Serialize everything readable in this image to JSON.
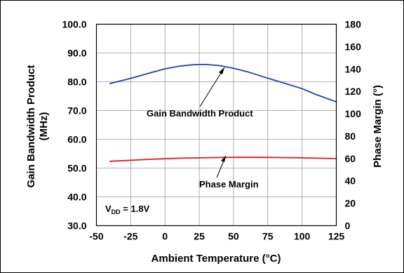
{
  "chart_data": {
    "type": "line",
    "xlabel": "Ambient Temperature (°C)",
    "ylabel_left_line1": "Gain Bandwidth Product",
    "ylabel_left_line2": "(MHz)",
    "ylabel_right": "Phase Margin (°)",
    "xlim": [
      -50,
      125
    ],
    "ylim_left": [
      30,
      100
    ],
    "ylim_right": [
      0,
      180
    ],
    "x_ticks": [
      "-50",
      "-25",
      "0",
      "25",
      "50",
      "75",
      "100",
      "125"
    ],
    "x_tick_values": [
      -50,
      -25,
      0,
      25,
      50,
      75,
      100,
      125
    ],
    "y_left_ticks": [
      "30.0",
      "40.0",
      "50.0",
      "60.0",
      "70.0",
      "80.0",
      "90.0",
      "100.0"
    ],
    "y_left_tick_values": [
      30,
      40,
      50,
      60,
      70,
      80,
      90,
      100
    ],
    "y_right_ticks": [
      "0",
      "20",
      "40",
      "60",
      "80",
      "100",
      "120",
      "140",
      "160",
      "180"
    ],
    "y_right_tick_values": [
      0,
      20,
      40,
      60,
      80,
      100,
      120,
      140,
      160,
      180
    ],
    "grid": true,
    "series": [
      {
        "name": "Gain Bandwidth Product",
        "axis": "left",
        "color": "#1f3fbf",
        "points": [
          [
            -40,
            79.4
          ],
          [
            -25,
            81.2
          ],
          [
            -10,
            83.2
          ],
          [
            0,
            84.5
          ],
          [
            10,
            85.4
          ],
          [
            20,
            85.9
          ],
          [
            25,
            86.0
          ],
          [
            30,
            86.0
          ],
          [
            40,
            85.6
          ],
          [
            50,
            84.7
          ],
          [
            60,
            83.5
          ],
          [
            70,
            82.0
          ],
          [
            80,
            80.5
          ],
          [
            90,
            79.1
          ],
          [
            100,
            77.6
          ],
          [
            110,
            75.6
          ],
          [
            125,
            73.0
          ]
        ]
      },
      {
        "name": "Phase Margin",
        "axis": "right",
        "color": "#e01818",
        "points": [
          [
            -40,
            57.5
          ],
          [
            -25,
            58.4
          ],
          [
            -10,
            59.3
          ],
          [
            0,
            59.8
          ],
          [
            10,
            60.2
          ],
          [
            25,
            60.6
          ],
          [
            40,
            60.9
          ],
          [
            50,
            61.0
          ],
          [
            65,
            61.0
          ],
          [
            80,
            60.9
          ],
          [
            90,
            60.8
          ],
          [
            100,
            60.6
          ],
          [
            110,
            60.3
          ],
          [
            125,
            59.9
          ]
        ]
      }
    ],
    "annotations": {
      "gbw_label": "Gain Bandwidth Product",
      "pm_label": "Phase Margin",
      "vdd_base": "V",
      "vdd_sub": "DD",
      "vdd_value": " = 1.8V"
    }
  }
}
